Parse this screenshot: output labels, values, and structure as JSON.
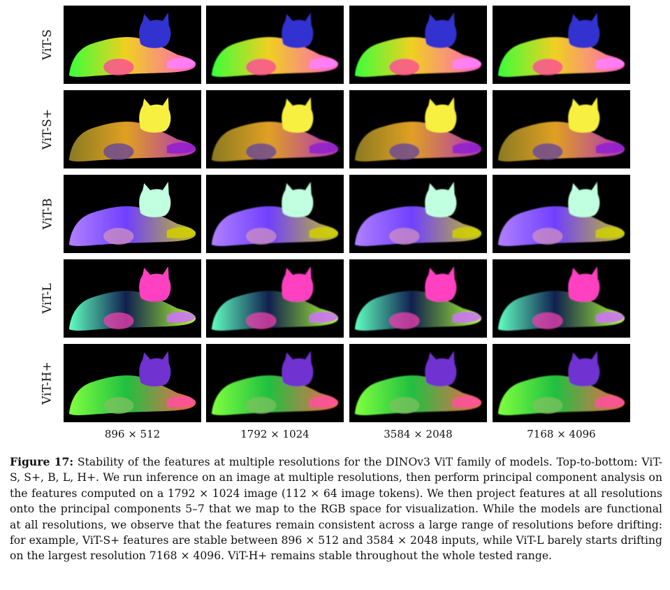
{
  "rows": [
    "ViT-S",
    "ViT-S+",
    "ViT-B",
    "ViT-L",
    "ViT-H+"
  ],
  "columns": [
    "896 × 512",
    "1792 × 1024",
    "3584 × 2048",
    "7168 × 4096"
  ],
  "caption": {
    "label": "Figure 17:",
    "text": "Stability of the features at multiple resolutions for the DINOv3 ViT family of models. Top-to-bottom: ViT-S, S+, B, L, H+. We run inference on an image at multiple resolutions, then perform principal component analysis on the features computed on a 1792 × 1024 image (112 × 64 image tokens). We then project features at all resolutions onto the principal components 5–7 that we map to the RGB space for visualization. While the models are functional at all resolutions, we observe that the features remain consistent across a large range of resolutions before drifting: for example, ViT-S+ features are stable between 896 × 512 and 3584 × 2048 inputs, while ViT-L barely starts drifting on the largest resolution 7168 × 4096. ViT-H+ remains stable throughout the whole tested range."
  },
  "palettes": {
    "ViT-S": {
      "body": [
        "#3aff3a",
        "#f0d020",
        "#ff5cc8"
      ],
      "head": "#3030d0",
      "tail": "#ff80ff",
      "paw": "#ff40a0"
    },
    "ViT-S+": {
      "body": [
        "#8a7a20",
        "#e0a020",
        "#b030c0"
      ],
      "head": "#f8f040",
      "tail": "#9020d0",
      "paw": "#6040a0"
    },
    "ViT-B": {
      "body": [
        "#b080ff",
        "#7040ff",
        "#c0c020"
      ],
      "head": "#c0ffe0",
      "tail": "#d0d000",
      "paw": "#d090c0"
    },
    "ViT-L": {
      "body": [
        "#60ffc0",
        "#102050",
        "#b0ff30"
      ],
      "head": "#ff40c0",
      "tail": "#d070ff",
      "paw": "#f040b0"
    },
    "ViT-H+": {
      "body": [
        "#80ff40",
        "#20c040",
        "#ff6050"
      ],
      "head": "#7030d0",
      "tail": "#ff50a0",
      "paw": "#80c060"
    }
  }
}
